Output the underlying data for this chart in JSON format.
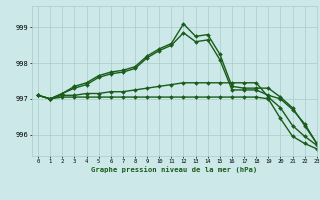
{
  "background_color": "#cce8e8",
  "grid_color": "#aacccc",
  "line_color": "#1a5c1a",
  "title": "Graphe pression niveau de la mer (hPa)",
  "xlim": [
    -0.5,
    23
  ],
  "ylim": [
    995.4,
    999.6
  ],
  "yticks": [
    996,
    997,
    998,
    999
  ],
  "xticks": [
    0,
    1,
    2,
    3,
    4,
    5,
    6,
    7,
    8,
    9,
    10,
    11,
    12,
    13,
    14,
    15,
    16,
    17,
    18,
    19,
    20,
    21,
    22,
    23
  ],
  "series": [
    {
      "x": [
        0,
        1,
        2,
        3,
        4,
        5,
        6,
        7,
        8,
        9,
        10,
        11,
        12,
        13,
        14,
        15,
        16,
        17,
        18,
        19,
        20,
        21,
        22,
        23
      ],
      "y": [
        997.1,
        997.0,
        997.15,
        997.35,
        997.45,
        997.65,
        997.75,
        997.8,
        997.9,
        998.2,
        998.4,
        998.55,
        999.1,
        998.75,
        998.8,
        998.25,
        997.35,
        997.3,
        997.3,
        997.3,
        997.05,
        996.75,
        996.25,
        995.75
      ]
    },
    {
      "x": [
        0,
        1,
        2,
        3,
        4,
        5,
        6,
        7,
        8,
        9,
        10,
        11,
        12,
        13,
        14,
        15,
        16,
        17,
        18,
        19,
        20,
        21,
        22,
        23
      ],
      "y": [
        997.1,
        997.0,
        997.15,
        997.3,
        997.4,
        997.6,
        997.7,
        997.75,
        997.85,
        998.15,
        998.35,
        998.5,
        998.85,
        998.6,
        998.65,
        998.1,
        997.25,
        997.25,
        997.25,
        997.1,
        997.0,
        996.7,
        996.3,
        995.75
      ]
    },
    {
      "x": [
        0,
        1,
        2,
        3,
        4,
        5,
        6,
        7,
        8,
        9,
        10,
        11,
        12,
        13,
        14,
        15,
        16,
        17,
        18,
        19,
        20,
        21,
        22,
        23
      ],
      "y": [
        997.1,
        997.0,
        997.1,
        997.1,
        997.15,
        997.15,
        997.2,
        997.2,
        997.25,
        997.3,
        997.35,
        997.4,
        997.45,
        997.45,
        997.45,
        997.45,
        997.45,
        997.45,
        997.45,
        997.05,
        996.75,
        996.25,
        995.95,
        995.7
      ]
    },
    {
      "x": [
        0,
        1,
        2,
        3,
        4,
        5,
        6,
        7,
        8,
        9,
        10,
        11,
        12,
        13,
        14,
        15,
        16,
        17,
        18,
        19,
        20,
        21,
        22,
        23
      ],
      "y": [
        997.1,
        997.0,
        997.05,
        997.05,
        997.05,
        997.05,
        997.05,
        997.05,
        997.05,
        997.05,
        997.05,
        997.05,
        997.05,
        997.05,
        997.05,
        997.05,
        997.05,
        997.05,
        997.05,
        997.0,
        996.45,
        995.95,
        995.75,
        995.6
      ]
    }
  ],
  "markersize": 2.0,
  "linewidth": 1.0
}
